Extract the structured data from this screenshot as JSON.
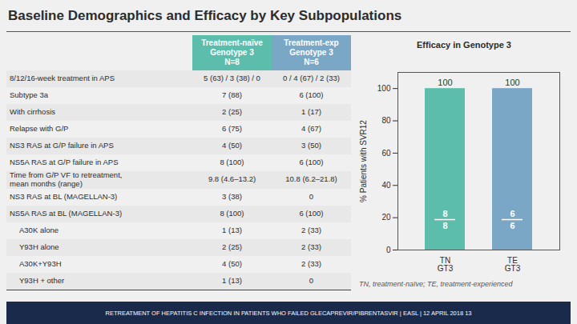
{
  "title": "Baseline Demographics and Efficacy by Key Subpopulations",
  "table": {
    "headers": [
      "Treatment-naïve\nGenotype 3\nN=8",
      "Treatment-exp\nGenotype 3\nN=6"
    ],
    "header_colors": [
      "#5cbdad",
      "#7ba7c7"
    ],
    "rows": [
      [
        "8/12/16-week treatment in APS",
        "5 (63) / 3 (38) / 0",
        "0 / 4 (67) / 2 (33)"
      ],
      [
        "Subtype 3a",
        "7 (88)",
        "6 (100)"
      ],
      [
        "With cirrhosis",
        "2 (25)",
        "1 (17)"
      ],
      [
        "Relapse with G/P",
        "6 (75)",
        "4 (67)"
      ],
      [
        "NS3 RAS at G/P failure in APS",
        "4 (50)",
        "3 (50)"
      ],
      [
        "NS5A RAS at G/P failure in APS",
        "8 (100)",
        "6 (100)"
      ],
      [
        "Time from G/P VF to retreatment,\nmean months (range)",
        "9.8 (4.6–13.2)",
        "10.8 (6.2–21.8)"
      ],
      [
        "NS3 RAS at BL (MAGELLAN-3)",
        "3 (38)",
        "0"
      ],
      [
        "NS5A RAS at BL (MAGELLAN-3)",
        "8 (100)",
        "6 (100)"
      ],
      [
        "  A30K alone",
        "1 (13)",
        "2 (33)"
      ],
      [
        "  Y93H alone",
        "2 (25)",
        "2 (33)"
      ],
      [
        "  A30K+Y93H",
        "4 (50)",
        "2 (33)"
      ],
      [
        "  Y93H + other",
        "1 (13)",
        "0"
      ]
    ]
  },
  "footnote": "TN, treatment-naïve; TE, treatment-experienced",
  "footer": "RETREATMENT OF HEPATITIS C INFECTION IN PATIENTS WHO FAILED GLECAPREVIR/PIBRENTASVIR | EASL | 12 APRIL 2018     13",
  "chart_data": {
    "type": "bar",
    "title": "Efficacy in Genotype 3",
    "categories": [
      "TN\nGT3",
      "TE\nGT3"
    ],
    "values": [
      100,
      100
    ],
    "colors": [
      "#5cbdad",
      "#7ba7c7"
    ],
    "ylabel": "% Patients with SVR12",
    "ylim": [
      0,
      110
    ],
    "yticks": [
      0,
      20,
      40,
      60,
      80,
      100
    ],
    "grid": false,
    "data_labels": true,
    "numerators": [
      "8",
      "6"
    ],
    "denominators": [
      "8",
      "6"
    ]
  }
}
